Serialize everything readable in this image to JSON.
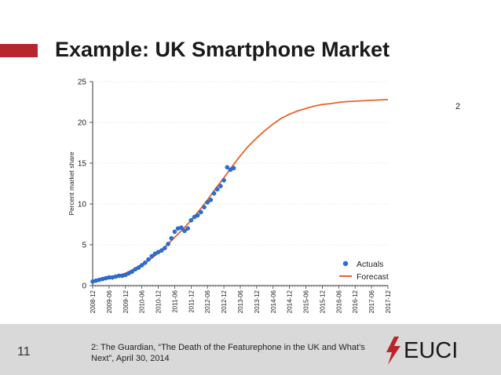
{
  "slide": {
    "title": "Example: UK Smartphone Market",
    "footnote_marker": "2",
    "page_number": "11",
    "source_note": "2: The Guardian, “The Death of the Featurephone in the UK and What’s Next”, April 30, 2014",
    "logo_text": "EUCI",
    "accent_color": "#b8262d",
    "footer_color": "#d9d9d9"
  },
  "chart_data": {
    "type": "scatter",
    "title": "",
    "xlabel": "",
    "ylabel": "Percent market share",
    "ylim": [
      0,
      25
    ],
    "yticks": [
      0,
      5,
      10,
      15,
      20,
      25
    ],
    "x_tick_labels": [
      "2008-12",
      "2009-06",
      "2009-12",
      "2010-06",
      "2010-12",
      "2011-06",
      "2011-12",
      "2012-06",
      "2012-12",
      "2013-06",
      "2013-12",
      "2014-06",
      "2014-12",
      "2015-06",
      "2015-12",
      "2016-06",
      "2016-12",
      "2017-06",
      "2017-12"
    ],
    "grid": true,
    "legend_position": "bottom-right",
    "series": [
      {
        "name": "Actuals",
        "type": "scatter",
        "color": "#2a6fd6",
        "x_period_index": [
          0,
          0.2,
          0.4,
          0.6,
          0.8,
          1.0,
          1.2,
          1.4,
          1.6,
          1.8,
          2.0,
          2.2,
          2.4,
          2.6,
          2.8,
          3.0,
          3.2,
          3.4,
          3.6,
          3.8,
          4.0,
          4.2,
          4.4,
          4.6,
          4.8,
          5.0,
          5.2,
          5.4,
          5.6,
          5.8,
          6.0,
          6.2,
          6.4,
          6.6,
          6.8,
          7.0,
          7.2,
          7.4,
          7.6,
          7.8,
          8.0,
          8.2,
          8.4,
          8.6
        ],
        "y": [
          0.5,
          0.6,
          0.7,
          0.8,
          0.9,
          1.0,
          1.0,
          1.1,
          1.2,
          1.2,
          1.3,
          1.5,
          1.7,
          2.0,
          2.2,
          2.5,
          2.8,
          3.2,
          3.6,
          3.9,
          4.1,
          4.3,
          4.6,
          5.1,
          5.8,
          6.6,
          7.0,
          7.1,
          6.7,
          7.0,
          8.0,
          8.4,
          8.6,
          9.0,
          9.6,
          10.2,
          10.5,
          11.3,
          11.8,
          12.2,
          12.9,
          14.5,
          14.2,
          14.4
        ]
      },
      {
        "name": "Forecast",
        "type": "line",
        "color": "#e8622c",
        "x_period_index": [
          0,
          0.5,
          1,
          1.5,
          2,
          2.5,
          3,
          3.5,
          4,
          4.5,
          5,
          5.5,
          6,
          6.5,
          7,
          7.5,
          8,
          8.5,
          9,
          9.5,
          10,
          10.5,
          11,
          11.5,
          12,
          12.5,
          13,
          13.5,
          14,
          14.5,
          15,
          15.5,
          16,
          16.5,
          17,
          17.5,
          18
        ],
        "y": [
          0.5,
          0.7,
          0.9,
          1.2,
          1.5,
          2.0,
          2.6,
          3.2,
          4.0,
          4.9,
          5.9,
          6.9,
          8.0,
          9.2,
          10.5,
          11.9,
          13.2,
          14.6,
          15.9,
          17.1,
          18.1,
          19.0,
          19.8,
          20.5,
          21.0,
          21.4,
          21.7,
          22.0,
          22.2,
          22.3,
          22.45,
          22.55,
          22.6,
          22.65,
          22.7,
          22.75,
          22.8
        ]
      }
    ]
  }
}
